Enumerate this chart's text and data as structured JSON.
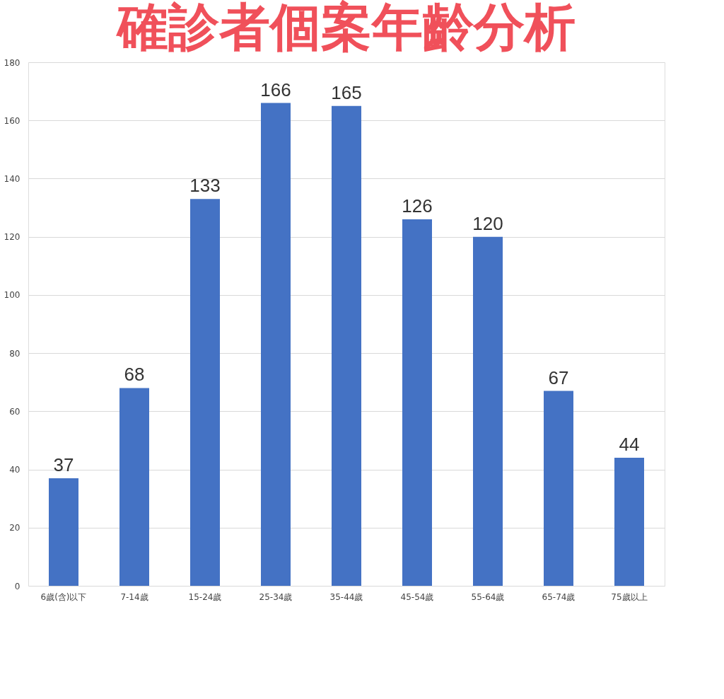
{
  "chart_data": {
    "type": "bar",
    "title": "確診者個案年齡分析",
    "categories": [
      "6歲(含)以下",
      "7-14歲",
      "15-24歲",
      "25-34歲",
      "35-44歲",
      "45-54歲",
      "55-64歲",
      "65-74歲",
      "75歲以上"
    ],
    "values": [
      37,
      68,
      133,
      166,
      165,
      126,
      120,
      67,
      44
    ],
    "color": "#4472c4",
    "ylim": [
      0,
      180
    ],
    "yticks": [
      0,
      20,
      40,
      60,
      80,
      100,
      120,
      140,
      160,
      180
    ],
    "grid": "y",
    "data_labels": true
  }
}
